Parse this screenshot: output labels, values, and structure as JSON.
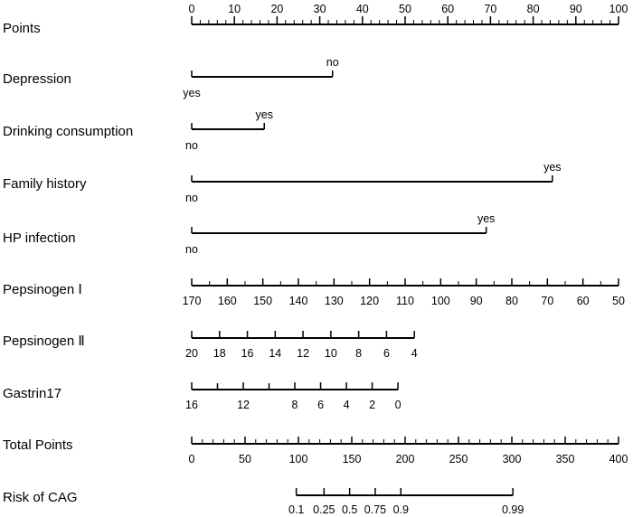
{
  "chart_data": {
    "type": "nomogram",
    "rows": [
      {
        "key": "points",
        "label": "Points",
        "kind": "points-scale",
        "labels_position": "above",
        "ticks": [
          {
            "value": 0,
            "text": "0"
          },
          {
            "value": 10,
            "text": "10"
          },
          {
            "value": 20,
            "text": "20"
          },
          {
            "value": 30,
            "text": "30"
          },
          {
            "value": 40,
            "text": "40"
          },
          {
            "value": 50,
            "text": "50"
          },
          {
            "value": 60,
            "text": "60"
          },
          {
            "value": 70,
            "text": "70"
          },
          {
            "value": 80,
            "text": "80"
          },
          {
            "value": 90,
            "text": "90"
          },
          {
            "value": 100,
            "text": "100"
          }
        ]
      },
      {
        "key": "depression",
        "label": "Depression",
        "kind": "categorical",
        "points_from": 0,
        "points_to": 33,
        "levels": [
          {
            "text": "yes",
            "points": 0,
            "position": "below"
          },
          {
            "text": "no",
            "points": 33,
            "position": "above"
          }
        ]
      },
      {
        "key": "drinking",
        "label": "Drinking consumption",
        "kind": "categorical",
        "points_from": 0,
        "points_to": 17,
        "levels": [
          {
            "text": "no",
            "points": 0,
            "position": "below"
          },
          {
            "text": "yes",
            "points": 17,
            "position": "above"
          }
        ]
      },
      {
        "key": "family",
        "label": "Family history",
        "kind": "categorical",
        "points_from": 0,
        "points_to": 84.5,
        "levels": [
          {
            "text": "no",
            "points": 0,
            "position": "below"
          },
          {
            "text": "yes",
            "points": 84.5,
            "position": "above"
          }
        ]
      },
      {
        "key": "hp",
        "label": "HP infection",
        "kind": "categorical",
        "points_from": 0,
        "points_to": 69,
        "levels": [
          {
            "text": "no",
            "points": 0,
            "position": "below"
          },
          {
            "text": "yes",
            "points": 69,
            "position": "above"
          }
        ]
      },
      {
        "key": "pg1",
        "label": "Pepsinogen Ⅰ",
        "kind": "continuous",
        "labels_position": "below",
        "value_at_0_points": 170,
        "value_at_100_points": 50,
        "ticks": [
          {
            "value": 170,
            "text": "170"
          },
          {
            "value": 160,
            "text": "160"
          },
          {
            "value": 150,
            "text": "150"
          },
          {
            "value": 140,
            "text": "140"
          },
          {
            "value": 130,
            "text": "130"
          },
          {
            "value": 120,
            "text": "120"
          },
          {
            "value": 110,
            "text": "110"
          },
          {
            "value": 100,
            "text": "100"
          },
          {
            "value": 90,
            "text": "90"
          },
          {
            "value": 80,
            "text": "80"
          },
          {
            "value": 70,
            "text": "70"
          },
          {
            "value": 60,
            "text": "60"
          },
          {
            "value": 50,
            "text": "50"
          }
        ]
      },
      {
        "key": "pg2",
        "label": "Pepsinogen Ⅱ",
        "kind": "continuous",
        "labels_position": "below",
        "value_at_0_points": 20,
        "points_per_unit": 3.26,
        "range": [
          4,
          20
        ],
        "ticks": [
          {
            "value": 20,
            "text": "20"
          },
          {
            "value": 18,
            "text": "18"
          },
          {
            "value": 16,
            "text": "16"
          },
          {
            "value": 14,
            "text": "14"
          },
          {
            "value": 12,
            "text": "12"
          },
          {
            "value": 10,
            "text": "10"
          },
          {
            "value": 8,
            "text": "8"
          },
          {
            "value": 6,
            "text": "6"
          },
          {
            "value": 4,
            "text": "4"
          }
        ]
      },
      {
        "key": "g17",
        "label": "Gastrin17",
        "kind": "continuous",
        "labels_position": "below",
        "value_at_0_points": 16,
        "points_per_unit": 3.02,
        "range": [
          0,
          16
        ],
        "ticks": [
          {
            "value": 16,
            "text": "16"
          },
          {
            "value": 12,
            "text": "12"
          },
          {
            "value": 8,
            "text": "8"
          },
          {
            "value": 6,
            "text": "6"
          },
          {
            "value": 4,
            "text": "4"
          },
          {
            "value": 2,
            "text": "2"
          },
          {
            "value": 0,
            "text": "0"
          }
        ]
      },
      {
        "key": "total",
        "label": "Total Points",
        "kind": "total-scale",
        "labels_position": "below",
        "range": [
          0,
          400
        ],
        "ticks": [
          {
            "value": 0,
            "text": "0"
          },
          {
            "value": 50,
            "text": "50"
          },
          {
            "value": 100,
            "text": "100"
          },
          {
            "value": 150,
            "text": "150"
          },
          {
            "value": 200,
            "text": "200"
          },
          {
            "value": 250,
            "text": "250"
          },
          {
            "value": 300,
            "text": "300"
          },
          {
            "value": 350,
            "text": "350"
          },
          {
            "value": 400,
            "text": "400"
          }
        ]
      },
      {
        "key": "risk",
        "label": "Risk of CAG",
        "kind": "risk-scale",
        "labels_position": "below",
        "ticks": [
          {
            "value": 0.1,
            "text": "0.1",
            "total_points": 98
          },
          {
            "value": 0.25,
            "text": "0.25",
            "total_points": 124
          },
          {
            "value": 0.5,
            "text": "0.5",
            "total_points": 148
          },
          {
            "value": 0.75,
            "text": "0.75",
            "total_points": 172
          },
          {
            "value": 0.9,
            "text": "0.9",
            "total_points": 196
          },
          {
            "value": 0.99,
            "text": "0.99",
            "total_points": 301
          }
        ]
      }
    ]
  }
}
